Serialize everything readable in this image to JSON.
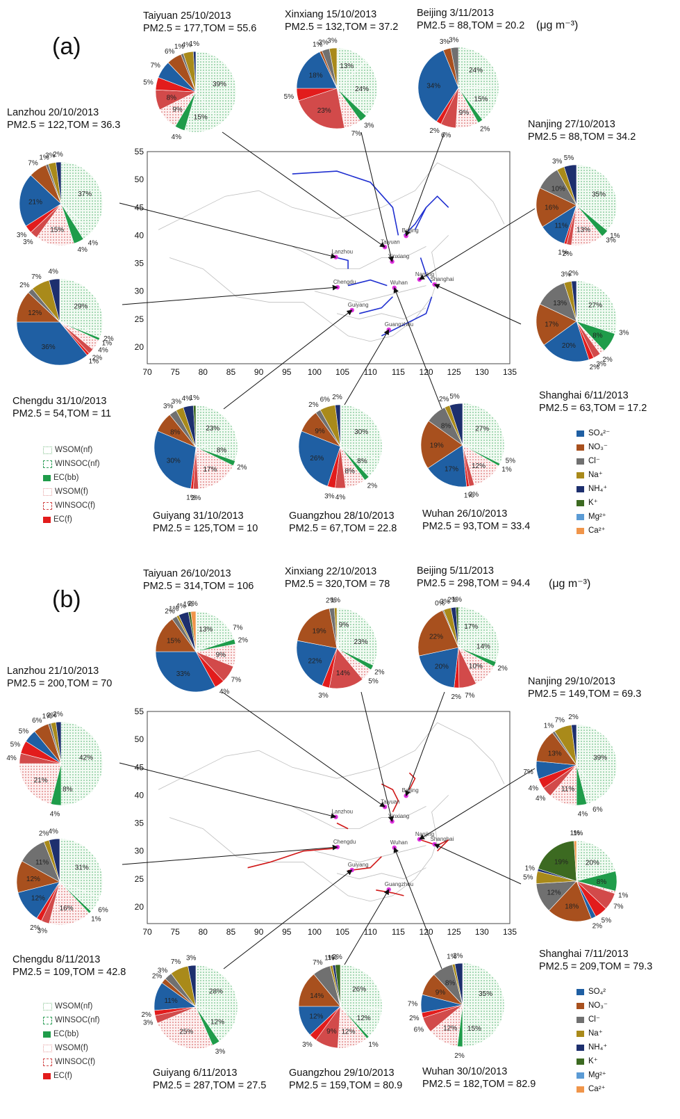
{
  "chart_data": [
    {
      "type": "pie",
      "panel": "(a)",
      "units": "(μg m⁻³)",
      "map": {
        "x_ticks": [
          "70",
          "75",
          "80",
          "85",
          "90",
          "95",
          "100",
          "105",
          "110",
          "115",
          "120",
          "125",
          "130",
          "135"
        ],
        "y_ticks": [
          "55",
          "50",
          "45",
          "40",
          "35",
          "30",
          "25",
          "20"
        ],
        "xlim": [
          70,
          135
        ],
        "ylim": [
          17,
          55
        ],
        "cities": [
          {
            "name": "Lanzhou",
            "lon": 103.8,
            "lat": 36.1
          },
          {
            "name": "Chengdu",
            "lon": 104.1,
            "lat": 30.7
          },
          {
            "name": "Guiyang",
            "lon": 106.7,
            "lat": 26.6
          },
          {
            "name": "Guangzhou",
            "lon": 113.3,
            "lat": 23.1
          },
          {
            "name": "Wuhan",
            "lon": 114.3,
            "lat": 30.6
          },
          {
            "name": "Xinxiang",
            "lon": 113.9,
            "lat": 35.3
          },
          {
            "name": "Taiyuan",
            "lon": 112.6,
            "lat": 37.9
          },
          {
            "name": "Beijing",
            "lon": 116.4,
            "lat": 39.9
          },
          {
            "name": "Nanjing",
            "lon": 118.8,
            "lat": 32.1
          },
          {
            "name": "Shanghai",
            "lon": 121.5,
            "lat": 31.2
          }
        ],
        "trajectory_color": "#1f2fd0"
      },
      "sites": [
        {
          "name": "Taiyuan 25/10/2013",
          "summary": "PM2.5 = 177,TOM = 55.6"
        },
        {
          "name": "Xinxiang 15/10/2013",
          "summary": "PM2.5 = 132,TOM = 37.2"
        },
        {
          "name": "Beijing 3/11/2013",
          "summary": "PM2.5 = 88,TOM = 20.2"
        },
        {
          "name": "Lanzhou 20/10/2013",
          "summary": "PM2.5 = 122,TOM = 36.3"
        },
        {
          "name": "Nanjing 27/10/2013",
          "summary": "PM2.5 = 88,TOM = 34.2"
        },
        {
          "name": "Chengdu 31/10/2013",
          "summary": "PM2.5 = 54,TOM = 11"
        },
        {
          "name": "Shanghai 6/11/2013",
          "summary": "PM2.5 = 63,TOM = 17.2"
        },
        {
          "name": "Guiyang 31/10/2013",
          "summary": "PM2.5 = 125,TOM = 10"
        },
        {
          "name": "Guangzhou 28/10/2013",
          "summary": "PM2.5 = 67,TOM = 22.8"
        },
        {
          "name": "Wuhan 26/10/2013",
          "summary": "PM2.5 = 93,TOM = 33.4"
        }
      ]
    },
    {
      "type": "pie",
      "panel": "(b)",
      "units": "(μg m⁻³)",
      "map": {
        "x_ticks": [
          "70",
          "75",
          "80",
          "85",
          "90",
          "95",
          "100",
          "105",
          "110",
          "115",
          "120",
          "125",
          "130",
          "135"
        ],
        "y_ticks": [
          "55",
          "50",
          "45",
          "40",
          "35",
          "30",
          "25",
          "20"
        ],
        "xlim": [
          70,
          135
        ],
        "ylim": [
          17,
          55
        ],
        "cities": [
          {
            "name": "Lanzhou",
            "lon": 103.8,
            "lat": 36.1
          },
          {
            "name": "Chengdu",
            "lon": 104.1,
            "lat": 30.7
          },
          {
            "name": "Guiyang",
            "lon": 106.7,
            "lat": 26.6
          },
          {
            "name": "Guangzhou",
            "lon": 113.3,
            "lat": 23.1
          },
          {
            "name": "Wuhan",
            "lon": 114.3,
            "lat": 30.6
          },
          {
            "name": "Xinxiang",
            "lon": 113.9,
            "lat": 35.3
          },
          {
            "name": "Taiyuan",
            "lon": 112.6,
            "lat": 37.9
          },
          {
            "name": "Beijing",
            "lon": 116.4,
            "lat": 39.9
          },
          {
            "name": "Nanjing",
            "lon": 118.8,
            "lat": 32.1
          },
          {
            "name": "Shanghai",
            "lon": 121.5,
            "lat": 31.2
          }
        ],
        "trajectory_color": "#d01818"
      },
      "sites": [
        {
          "name": "Taiyuan 26/10/2013",
          "summary": "PM2.5 = 314,TOM = 106"
        },
        {
          "name": "Xinxiang 22/10/2013",
          "summary": "PM2.5 = 320,TOM = 78"
        },
        {
          "name": "Beijing 5/11/2013",
          "summary": "PM2.5 = 298,TOM = 94.4"
        },
        {
          "name": "Lanzhou 21/10/2013",
          "summary": "PM2.5 = 200,TOM = 70"
        },
        {
          "name": "Nanjing 29/10/2013",
          "summary": "PM2.5 = 149,TOM = 69.3"
        },
        {
          "name": "Chengdu 8/11/2013",
          "summary": "PM2.5 = 109,TOM = 42.8"
        },
        {
          "name": "Shanghai 7/11/2013",
          "summary": "PM2.5 = 209,TOM = 79.3"
        },
        {
          "name": "Guiyang 6/11/2013",
          "summary": "PM2.5 = 287,TOM = 27.5"
        },
        {
          "name": "Guangzhou 29/10/2013",
          "summary": "PM2.5 = 159,TOM = 80.9"
        },
        {
          "name": "Wuhan 30/10/2013",
          "summary": "PM2.5 = 182,TOM = 82.9"
        }
      ]
    }
  ],
  "pie_label_sets": {
    "a": [
      [
        "1%",
        "4%",
        "1%",
        "6%",
        "7%",
        "5%",
        "8%",
        "9%",
        "4%",
        "15%",
        "39%"
      ],
      [
        "3%",
        "3%",
        "1%",
        "18%",
        "5%",
        "23%",
        "7%",
        "3%",
        "24%",
        "13%"
      ],
      [
        "3%",
        "3%",
        "34%",
        "2%",
        "6%",
        "9%",
        "2%",
        "15%",
        "24%"
      ],
      [
        "2%",
        "3%",
        "1%",
        "7%",
        "21%",
        "3%",
        "3%",
        "15%",
        "4%",
        "4%",
        "37%"
      ],
      [
        "5%",
        "3%",
        "10%",
        "16%",
        "11%",
        "1%",
        "2%",
        "13%",
        "3%",
        "1%",
        "35%"
      ],
      [
        "4%",
        "7%",
        "2%",
        "12%",
        "36%",
        "1%",
        "2%",
        "4%",
        "1%",
        "2%",
        "29%"
      ],
      [
        "2%",
        "3%",
        "13%",
        "17%",
        "20%",
        "2%",
        "3%",
        "2%",
        "8%",
        "3%",
        "27%"
      ],
      [
        "1%",
        "4%",
        "3%",
        "3%",
        "8%",
        "30%",
        "1%",
        "2%",
        "17%",
        "2%",
        "8%",
        "23%"
      ],
      [
        "2%",
        "6%",
        "2%",
        "9%",
        "26%",
        "3%",
        "4%",
        "8%",
        "2%",
        "8%",
        "30%"
      ],
      [
        "5%",
        "2%",
        "8%",
        "19%",
        "17%",
        "1%",
        "2%",
        "12%",
        "1%",
        "5%",
        "27%"
      ]
    ],
    "b": [
      [
        "2%",
        "1%",
        "4%",
        "1%",
        "2%",
        "15%",
        "33%",
        "4%",
        "7%",
        "9%",
        "2%",
        "7%",
        "13%"
      ],
      [
        "1%",
        "2%",
        "19%",
        "22%",
        "3%",
        "14%",
        "5%",
        "2%",
        "23%",
        "9%"
      ],
      [
        "1%",
        "2%",
        "3%",
        "0%",
        "22%",
        "20%",
        "2%",
        "7%",
        "10%",
        "2%",
        "14%",
        "17%"
      ],
      [
        "2%",
        "2%",
        "1%",
        "6%",
        "5%",
        "5%",
        "4%",
        "21%",
        "4%",
        "8%",
        "42%"
      ],
      [
        "2%",
        "7%",
        "1%",
        "13%",
        "7%",
        "4%",
        "4%",
        "11%",
        "4%",
        "6%",
        "39%"
      ],
      [
        "4%",
        "2%",
        "11%",
        "12%",
        "12%",
        "2%",
        "3%",
        "16%",
        "1%",
        "6%",
        "31%"
      ],
      [
        "1%",
        "19%",
        "1%",
        "5%",
        "12%",
        "18%",
        "2%",
        "5%",
        "7%",
        "1%",
        "8%",
        "20%",
        "1%"
      ],
      [
        "3%",
        "7%",
        "3%",
        "2%",
        "11%",
        "2%",
        "3%",
        "25%",
        "3%",
        "12%",
        "28%"
      ],
      [
        "2%",
        "1%",
        "1%",
        "7%",
        "14%",
        "12%",
        "3%",
        "9%",
        "12%",
        "1%",
        "12%",
        "26%"
      ],
      [
        "3%",
        "1%",
        "8%",
        "9%",
        "7%",
        "2%",
        "6%",
        "12%",
        "2%",
        "15%",
        "35%"
      ]
    ]
  },
  "legend_left": [
    {
      "label": "WSOM(nf)",
      "color": "#7fbf8a"
    },
    {
      "label": "WINSOC(nf)",
      "color": "#2e9e58"
    },
    {
      "label": "EC(bb)",
      "color": "#1f9c4a"
    },
    {
      "label": "WSOM(f)",
      "color": "#e49c9c"
    },
    {
      "label": "WINSOC(f)",
      "color": "#d24a4a"
    },
    {
      "label": "EC(f)",
      "color": "#e21c1c"
    }
  ],
  "legend_right_a": [
    {
      "label": "SO₄²⁻",
      "color": "#1f5fa3"
    },
    {
      "label": "NO₃⁻",
      "color": "#a8501e"
    },
    {
      "label": "Cl⁻",
      "color": "#707070"
    },
    {
      "label": "Na⁺",
      "color": "#a98a1a"
    },
    {
      "label": "NH₄⁺",
      "color": "#1d2f6e"
    },
    {
      "label": "K⁺",
      "color": "#3c6a21"
    },
    {
      "label": "Mg²⁺",
      "color": "#5b9bd5"
    },
    {
      "label": "Ca²⁺",
      "color": "#f0954a"
    }
  ],
  "legend_right_b": [
    {
      "label": "SO₄²",
      "color": "#1f5fa3"
    },
    {
      "label": "NO₃⁻",
      "color": "#a8501e"
    },
    {
      "label": "Cl⁻",
      "color": "#707070"
    },
    {
      "label": "Na⁺",
      "color": "#a98a1a"
    },
    {
      "label": "NH₄⁺",
      "color": "#1d2f6e"
    },
    {
      "label": "K⁺",
      "color": "#3c6a21"
    },
    {
      "label": "Mg²⁺",
      "color": "#5b9bd5"
    },
    {
      "label": "Ca²⁺",
      "color": "#f0954a"
    }
  ]
}
